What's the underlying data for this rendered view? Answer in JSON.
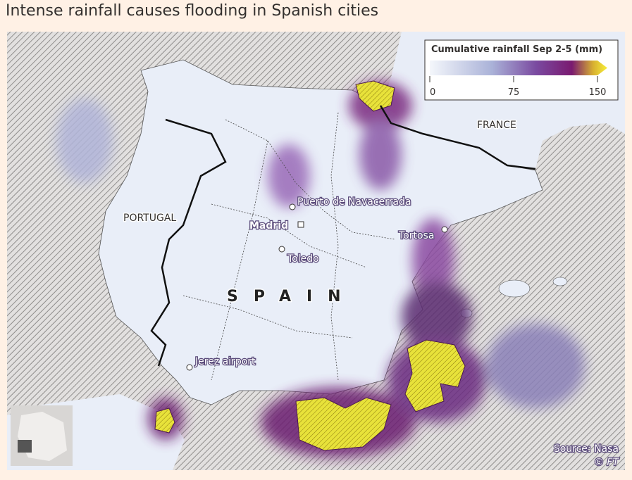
{
  "header": {
    "title": "Intense rainfall causes flooding in Spanish cities"
  },
  "legend": {
    "title": "Cumulative rainfall Sep 2-5 (mm)",
    "range": [
      0,
      150
    ],
    "ticks": [
      0,
      75,
      150
    ]
  },
  "countries": {
    "france": "FRANCE",
    "portugal": "PORTUGAL",
    "spain": "SPAIN"
  },
  "places": {
    "navacerrada": "Puerto de Navacerrada",
    "madrid": "Madrid",
    "toledo": "Toledo",
    "tortosa": "Tortosa",
    "jerez": "Jerez airport"
  },
  "footer": {
    "source": "Source: Nasa",
    "credit": "© FT"
  }
}
